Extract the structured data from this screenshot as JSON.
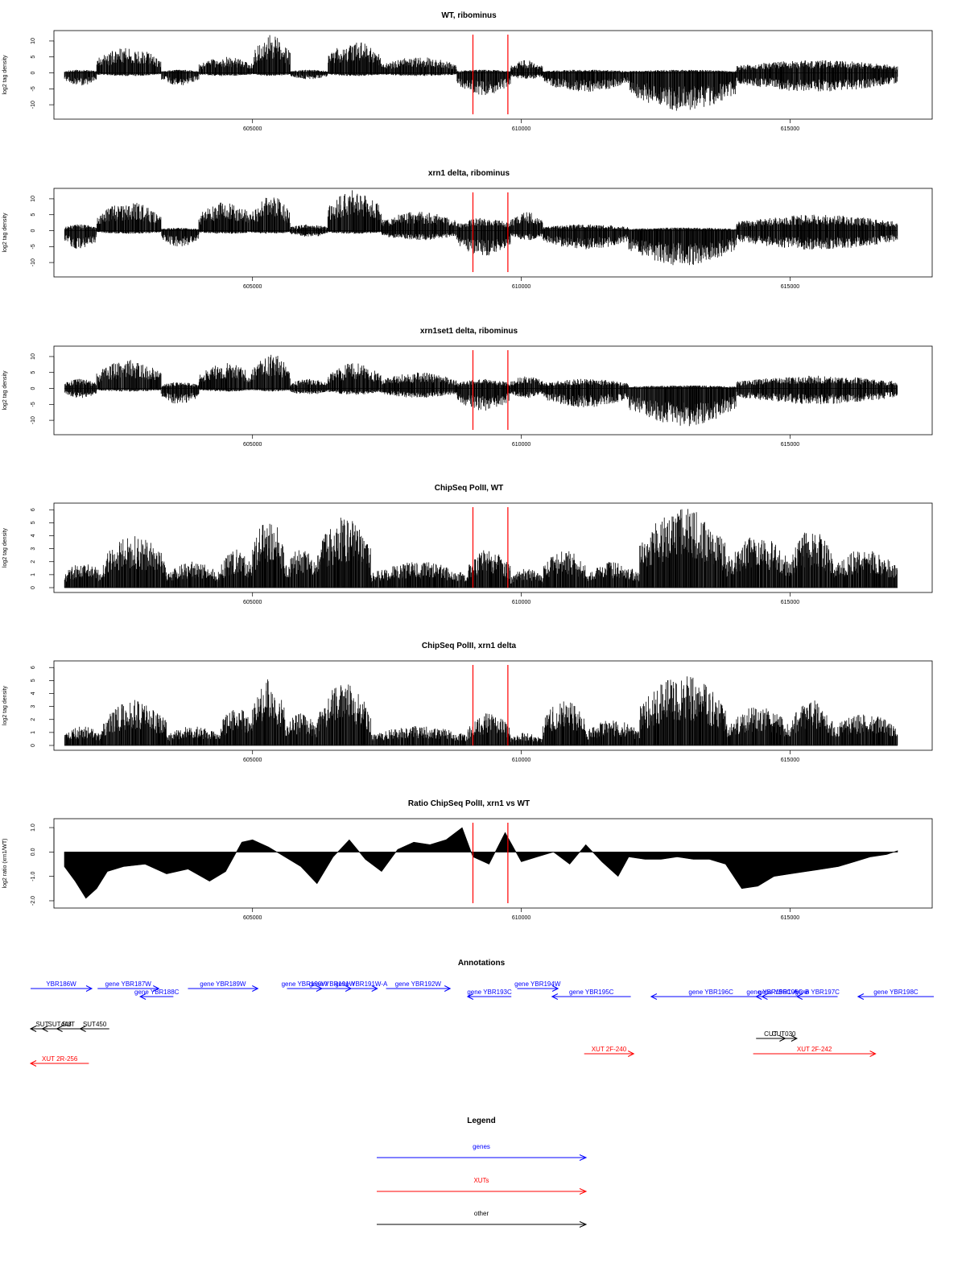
{
  "chart_data": [
    {
      "type": "bar",
      "title": "WT, ribominus",
      "xlabel": "",
      "ylabel": "log2 tag density",
      "xlim": [
        601500,
        617000
      ],
      "ylim": [
        -13,
        12
      ],
      "yticks": [
        -10,
        -5,
        0,
        5,
        10
      ],
      "xticks": [
        605000,
        610000,
        615000
      ],
      "segments": [
        {
          "x": [
            601500,
            602100
          ],
          "min": -4,
          "max": 1
        },
        {
          "x": [
            602100,
            603300
          ],
          "min": -1,
          "max": 8
        },
        {
          "x": [
            603300,
            604000
          ],
          "min": -4,
          "max": 1
        },
        {
          "x": [
            604000,
            605000
          ],
          "min": -1,
          "max": 5
        },
        {
          "x": [
            605000,
            605700
          ],
          "min": -1,
          "max": 12
        },
        {
          "x": [
            605700,
            606400
          ],
          "min": -2,
          "max": 1
        },
        {
          "x": [
            606400,
            607400
          ],
          "min": -1,
          "max": 10
        },
        {
          "x": [
            607400,
            608800
          ],
          "min": -1,
          "max": 5
        },
        {
          "x": [
            608800,
            609800
          ],
          "min": -7,
          "max": 1
        },
        {
          "x": [
            609800,
            610400
          ],
          "min": -2,
          "max": 4
        },
        {
          "x": [
            610400,
            612000
          ],
          "min": -6,
          "max": 1
        },
        {
          "x": [
            612000,
            614000
          ],
          "min": -12,
          "max": 1
        },
        {
          "x": [
            614000,
            617000
          ],
          "min": -6,
          "max": 4
        }
      ],
      "markers": [
        609100,
        609750
      ]
    },
    {
      "type": "bar",
      "title": "xrn1 delta, ribominus",
      "xlabel": "",
      "ylabel": "log2 tag density",
      "xlim": [
        601500,
        617000
      ],
      "ylim": [
        -13,
        12
      ],
      "yticks": [
        -10,
        -5,
        0,
        5,
        10
      ],
      "xticks": [
        605000,
        610000,
        615000
      ],
      "segments": [
        {
          "x": [
            601500,
            602100
          ],
          "min": -6,
          "max": 2
        },
        {
          "x": [
            602100,
            603300
          ],
          "min": -1,
          "max": 9
        },
        {
          "x": [
            603300,
            604000
          ],
          "min": -5,
          "max": 1
        },
        {
          "x": [
            604000,
            605000
          ],
          "min": -1,
          "max": 9
        },
        {
          "x": [
            605000,
            605700
          ],
          "min": -1,
          "max": 11
        },
        {
          "x": [
            605700,
            606400
          ],
          "min": -2,
          "max": 2
        },
        {
          "x": [
            606400,
            607400
          ],
          "min": -1,
          "max": 13
        },
        {
          "x": [
            607400,
            608800
          ],
          "min": -3,
          "max": 6
        },
        {
          "x": [
            608800,
            609800
          ],
          "min": -8,
          "max": 4
        },
        {
          "x": [
            609800,
            610400
          ],
          "min": -3,
          "max": 6
        },
        {
          "x": [
            610400,
            612000
          ],
          "min": -6,
          "max": 2
        },
        {
          "x": [
            612000,
            614000
          ],
          "min": -11,
          "max": 1
        },
        {
          "x": [
            614000,
            617000
          ],
          "min": -6,
          "max": 5
        }
      ],
      "markers": [
        609100,
        609750
      ]
    },
    {
      "type": "bar",
      "title": "xrn1set1 delta, ribominus",
      "xlabel": "",
      "ylabel": "log2 tag density",
      "xlim": [
        601500,
        617000
      ],
      "ylim": [
        -13,
        12
      ],
      "yticks": [
        -10,
        -5,
        0,
        5,
        10
      ],
      "xticks": [
        605000,
        610000,
        615000
      ],
      "segments": [
        {
          "x": [
            601500,
            602100
          ],
          "min": -3,
          "max": 3
        },
        {
          "x": [
            602100,
            603300
          ],
          "min": -1,
          "max": 9
        },
        {
          "x": [
            603300,
            604000
          ],
          "min": -5,
          "max": 2
        },
        {
          "x": [
            604000,
            605000
          ],
          "min": -1,
          "max": 8
        },
        {
          "x": [
            605000,
            605700
          ],
          "min": -1,
          "max": 11
        },
        {
          "x": [
            605700,
            606400
          ],
          "min": -2,
          "max": 3
        },
        {
          "x": [
            606400,
            607400
          ],
          "min": -2,
          "max": 8
        },
        {
          "x": [
            607400,
            608800
          ],
          "min": -3,
          "max": 5
        },
        {
          "x": [
            608800,
            609800
          ],
          "min": -7,
          "max": 3
        },
        {
          "x": [
            609800,
            610400
          ],
          "min": -3,
          "max": 4
        },
        {
          "x": [
            610400,
            612000
          ],
          "min": -6,
          "max": 3
        },
        {
          "x": [
            612000,
            614000
          ],
          "min": -12,
          "max": 1
        },
        {
          "x": [
            614000,
            617000
          ],
          "min": -5,
          "max": 4
        }
      ],
      "markers": [
        609100,
        609750
      ]
    },
    {
      "type": "bar",
      "title": "ChipSeq PolII, WT",
      "xlabel": "",
      "ylabel": "log2 tag density",
      "xlim": [
        601500,
        617000
      ],
      "ylim": [
        0,
        6.2
      ],
      "yticks": [
        0,
        1,
        2,
        3,
        4,
        5,
        6
      ],
      "xticks": [
        605000,
        610000,
        615000
      ],
      "segments": [
        {
          "x": [
            601500,
            602200
          ],
          "min": 0,
          "max": 2
        },
        {
          "x": [
            602200,
            603400
          ],
          "min": 0,
          "max": 4
        },
        {
          "x": [
            603400,
            604400
          ],
          "min": 0,
          "max": 2
        },
        {
          "x": [
            604400,
            605000
          ],
          "min": 0,
          "max": 3
        },
        {
          "x": [
            605000,
            605600
          ],
          "min": 0,
          "max": 5.5
        },
        {
          "x": [
            605600,
            606200
          ],
          "min": 0,
          "max": 3
        },
        {
          "x": [
            606200,
            607200
          ],
          "min": 0,
          "max": 5.5
        },
        {
          "x": [
            607200,
            609000
          ],
          "min": 0,
          "max": 2
        },
        {
          "x": [
            609000,
            609800
          ],
          "min": 0,
          "max": 3
        },
        {
          "x": [
            609800,
            610400
          ],
          "min": 0,
          "max": 1.5
        },
        {
          "x": [
            610400,
            611200
          ],
          "min": 0,
          "max": 3
        },
        {
          "x": [
            611200,
            612200
          ],
          "min": 0,
          "max": 2
        },
        {
          "x": [
            612200,
            613800
          ],
          "min": 0,
          "max": 6.2
        },
        {
          "x": [
            613800,
            615000
          ],
          "min": 0,
          "max": 4
        },
        {
          "x": [
            615000,
            615800
          ],
          "min": 0,
          "max": 4.5
        },
        {
          "x": [
            615800,
            617000
          ],
          "min": 0,
          "max": 3
        }
      ],
      "markers": [
        609100,
        609750
      ]
    },
    {
      "type": "bar",
      "title": "ChipSeq PolII, xrn1 delta",
      "xlabel": "",
      "ylabel": "log2 tag density",
      "xlim": [
        601500,
        617000
      ],
      "ylim": [
        0,
        6.2
      ],
      "yticks": [
        0,
        1,
        2,
        3,
        4,
        5,
        6
      ],
      "xticks": [
        605000,
        610000,
        615000
      ],
      "segments": [
        {
          "x": [
            601500,
            602200
          ],
          "min": 0,
          "max": 1.5
        },
        {
          "x": [
            602200,
            603400
          ],
          "min": 0,
          "max": 3.5
        },
        {
          "x": [
            603400,
            604400
          ],
          "min": 0,
          "max": 1.5
        },
        {
          "x": [
            604400,
            605000
          ],
          "min": 0,
          "max": 3
        },
        {
          "x": [
            605000,
            605600
          ],
          "min": 0,
          "max": 5.3
        },
        {
          "x": [
            605600,
            606200
          ],
          "min": 0,
          "max": 2.5
        },
        {
          "x": [
            606200,
            607200
          ],
          "min": 0,
          "max": 4.8
        },
        {
          "x": [
            607200,
            609000
          ],
          "min": 0,
          "max": 1.5
        },
        {
          "x": [
            609000,
            609800
          ],
          "min": 0,
          "max": 2.5
        },
        {
          "x": [
            609800,
            610400
          ],
          "min": 0,
          "max": 1
        },
        {
          "x": [
            610400,
            611200
          ],
          "min": 0,
          "max": 3.5
        },
        {
          "x": [
            611200,
            612200
          ],
          "min": 0,
          "max": 2
        },
        {
          "x": [
            612200,
            613800
          ],
          "min": 0,
          "max": 5.5
        },
        {
          "x": [
            613800,
            615000
          ],
          "min": 0,
          "max": 3
        },
        {
          "x": [
            615000,
            615800
          ],
          "min": 0,
          "max": 3.5
        },
        {
          "x": [
            615800,
            617000
          ],
          "min": 0,
          "max": 2.5
        }
      ],
      "markers": [
        609100,
        609750
      ]
    },
    {
      "type": "area",
      "title": "Ratio ChipSeq PolII, xrn1 vs WT",
      "xlabel": "",
      "ylabel": "log2 ratio (xrn1/WT)",
      "xlim": [
        601500,
        617000
      ],
      "ylim": [
        -2.1,
        1.2
      ],
      "yticks": [
        -2.0,
        -1.0,
        0.0,
        1.0
      ],
      "ytick_labels": [
        "-2.0",
        "-1.0",
        "0.0",
        "1.0"
      ],
      "xticks": [
        605000,
        610000,
        615000
      ],
      "x": [
        601500,
        601700,
        601900,
        602100,
        602300,
        602600,
        603000,
        603400,
        603800,
        604200,
        604500,
        604800,
        605000,
        605300,
        605600,
        605900,
        606200,
        606500,
        606800,
        607100,
        607400,
        607700,
        608000,
        608300,
        608600,
        608900,
        609100,
        609400,
        609700,
        610000,
        610300,
        610600,
        610900,
        611200,
        611500,
        611800,
        612000,
        612300,
        612600,
        612900,
        613200,
        613500,
        613800,
        614100,
        614400,
        614700,
        615000,
        615300,
        615600,
        615900,
        616200,
        616500,
        616800,
        617000
      ],
      "y": [
        -0.6,
        -1.2,
        -1.9,
        -1.5,
        -0.8,
        -0.6,
        -0.5,
        -0.9,
        -0.7,
        -1.2,
        -0.8,
        0.4,
        0.5,
        0.2,
        -0.2,
        -0.6,
        -1.3,
        -0.2,
        0.5,
        -0.3,
        -0.8,
        0.1,
        0.4,
        0.3,
        0.5,
        1.0,
        -0.2,
        -0.5,
        0.8,
        -0.4,
        -0.2,
        0.0,
        -0.5,
        0.3,
        -0.4,
        -1.0,
        -0.2,
        -0.3,
        -0.3,
        -0.2,
        -0.3,
        -0.3,
        -0.5,
        -1.5,
        -1.4,
        -1.0,
        -0.9,
        -0.8,
        -0.7,
        -0.6,
        -0.4,
        -0.2,
        -0.1,
        0.05
      ],
      "markers": [
        609100,
        609750
      ]
    },
    {
      "type": "table",
      "title": "Annotations",
      "xlim": [
        601500,
        617000
      ],
      "features": [
        {
          "label": "YBR186W",
          "class": "gene",
          "strand": "+",
          "start": 601500,
          "end": 602550,
          "row": 0
        },
        {
          "label": "gene YBR187W",
          "class": "gene",
          "strand": "+",
          "start": 602650,
          "end": 603700,
          "row": 0
        },
        {
          "label": "gene YBR188C",
          "class": "gene",
          "strand": "-",
          "start": 603380,
          "end": 603950,
          "row": 1
        },
        {
          "label": "gene YBR189W",
          "class": "gene",
          "strand": "+",
          "start": 604200,
          "end": 605400,
          "row": 0
        },
        {
          "label": "gene YBR190W",
          "class": "gene",
          "strand": "+",
          "start": 605900,
          "end": 606500,
          "row": 0
        },
        {
          "label": "gene YBR191W",
          "class": "gene",
          "strand": "+",
          "start": 606350,
          "end": 607000,
          "row": 0
        },
        {
          "label": "gene YBR191W-A",
          "class": "gene",
          "strand": "+",
          "start": 606900,
          "end": 607450,
          "row": 0
        },
        {
          "label": "gene YBR192W",
          "class": "gene",
          "strand": "+",
          "start": 607600,
          "end": 608700,
          "row": 0
        },
        {
          "label": "gene YBR193C",
          "class": "gene",
          "strand": "-",
          "start": 609000,
          "end": 609750,
          "row": 1
        },
        {
          "label": "gene YBR194W",
          "class": "gene",
          "strand": "+",
          "start": 609850,
          "end": 610550,
          "row": 0
        },
        {
          "label": "gene YBR195C",
          "class": "gene",
          "strand": "-",
          "start": 610450,
          "end": 611800,
          "row": 1
        },
        {
          "label": "gene YBR196C",
          "class": "gene",
          "strand": "-",
          "start": 612150,
          "end": 614200,
          "row": 1
        },
        {
          "label": "gene YBR196C-A",
          "class": "gene",
          "strand": "-",
          "start": 613950,
          "end": 614500,
          "row": 1
        },
        {
          "label": "gene YBR196C-B",
          "class": "gene",
          "strand": "-",
          "start": 614050,
          "end": 614800,
          "row": 1
        },
        {
          "label": "gene YBR197C",
          "class": "gene",
          "strand": "-",
          "start": 614650,
          "end": 615350,
          "row": 1
        },
        {
          "label": "gene YBR198C",
          "class": "gene",
          "strand": "-",
          "start": 615700,
          "end": 617100,
          "row": 1
        },
        {
          "label": "SUT",
          "class": "other",
          "strand": "-",
          "start": 601500,
          "end": 601900,
          "row": 2
        },
        {
          "label": "SUT448",
          "class": "other",
          "strand": "-",
          "start": 601700,
          "end": 602300,
          "row": 2
        },
        {
          "label": "SUT",
          "class": "other",
          "strand": "-",
          "start": 601950,
          "end": 602350,
          "row": 2
        },
        {
          "label": "SUT450",
          "class": "other",
          "strand": "-",
          "start": 602350,
          "end": 602850,
          "row": 2
        },
        {
          "label": "CUT",
          "class": "other",
          "strand": "+",
          "start": 613950,
          "end": 614450,
          "row": 3
        },
        {
          "label": "CUT030",
          "class": "other",
          "strand": "+",
          "start": 614200,
          "end": 614650,
          "row": 3
        },
        {
          "label": "XUT 2F-240",
          "class": "xut",
          "strand": "+",
          "start": 611000,
          "end": 611850,
          "row": 4
        },
        {
          "label": "XUT 2F-242",
          "class": "xut",
          "strand": "+",
          "start": 613900,
          "end": 616000,
          "row": 4
        },
        {
          "label": "XUT 2R-256",
          "class": "xut",
          "strand": "-",
          "start": 601500,
          "end": 602500,
          "row": 5
        }
      ]
    }
  ],
  "legend": {
    "title": "Legend",
    "items": [
      {
        "label": "genes",
        "color": "#0000ff"
      },
      {
        "label": "XUTs",
        "color": "#ff0000"
      },
      {
        "label": "other",
        "color": "#000000"
      }
    ]
  },
  "colors": {
    "gene": "#0000ff",
    "xut": "#ff0000",
    "other": "#000000",
    "marker": "#ff0000",
    "data": "#000000"
  }
}
